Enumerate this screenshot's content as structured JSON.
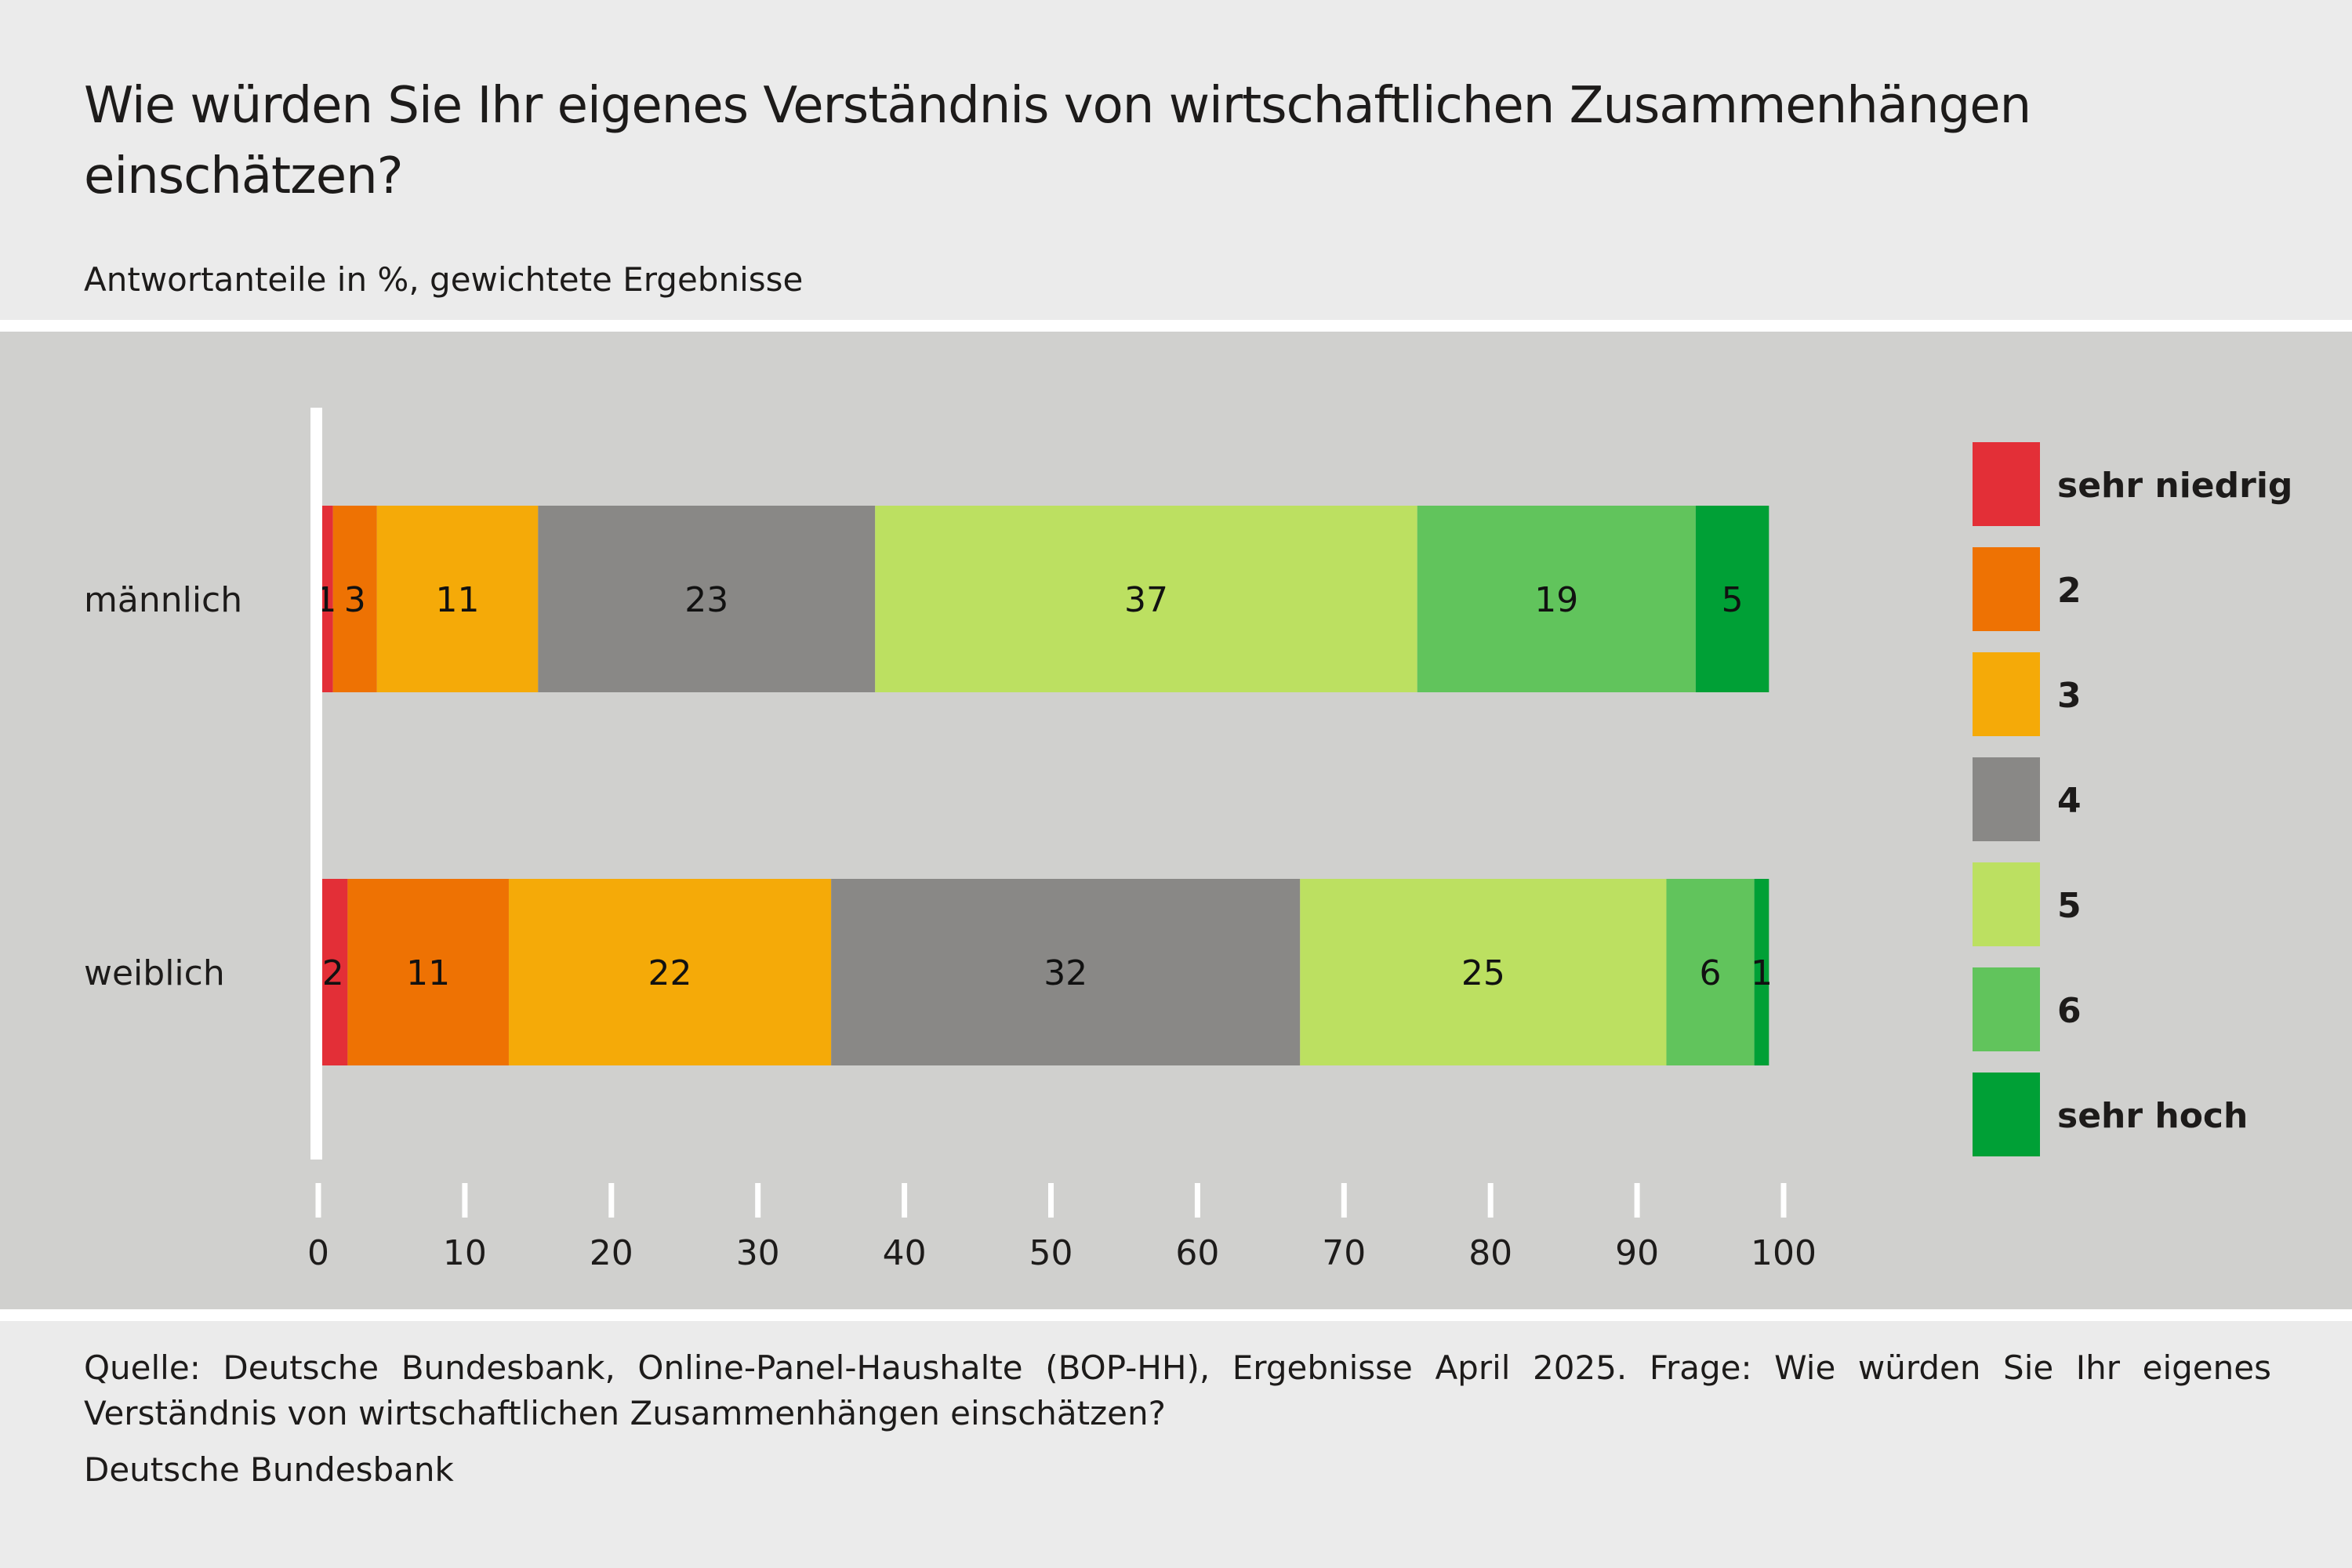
{
  "header": {
    "title": "Wie würden Sie Ihr eigenes Verständnis von wirtschaftlichen Zusammenhängen einschätzen?",
    "subtitle": "Antwortanteile in %, gewichtete Ergebnisse"
  },
  "footer": {
    "source": "Quelle: Deutsche Bundesbank, Online-Panel-Haushalte (BOP-HH), Ergebnisse April 2025. Frage: Wie würden Sie Ihr eigenes Verständnis von wirtschaftlichen Zusammenhängen einschätzen?",
    "publisher": "Deutsche Bundesbank"
  },
  "chart_data": {
    "type": "bar",
    "orientation": "horizontal",
    "stacked": true,
    "title": "Wie würden Sie Ihr eigenes Verständnis von wirtschaftlichen Zusammenhängen einschätzen?",
    "subtitle": "Antwortanteile in %, gewichtete Ergebnisse",
    "xlabel": "",
    "ylabel": "",
    "xlim": [
      0,
      100
    ],
    "xticks": [
      0,
      10,
      20,
      30,
      40,
      50,
      60,
      70,
      80,
      90,
      100
    ],
    "grid": false,
    "legend_position": "right",
    "categories": [
      "männlich",
      "weiblich"
    ],
    "series": [
      {
        "name": "sehr niedrig",
        "color": "#e32f37",
        "values": [
          1,
          2
        ]
      },
      {
        "name": "2",
        "color": "#ee7203",
        "values": [
          3,
          11
        ]
      },
      {
        "name": "3",
        "color": "#f5aa08",
        "values": [
          11,
          22
        ]
      },
      {
        "name": "4",
        "color": "#898886",
        "values": [
          23,
          32
        ]
      },
      {
        "name": "5",
        "color": "#bce061",
        "values": [
          37,
          25
        ]
      },
      {
        "name": "6",
        "color": "#61c45c",
        "values": [
          19,
          6
        ]
      },
      {
        "name": "sehr hoch",
        "color": "#00a036",
        "values": [
          5,
          1
        ]
      }
    ]
  }
}
